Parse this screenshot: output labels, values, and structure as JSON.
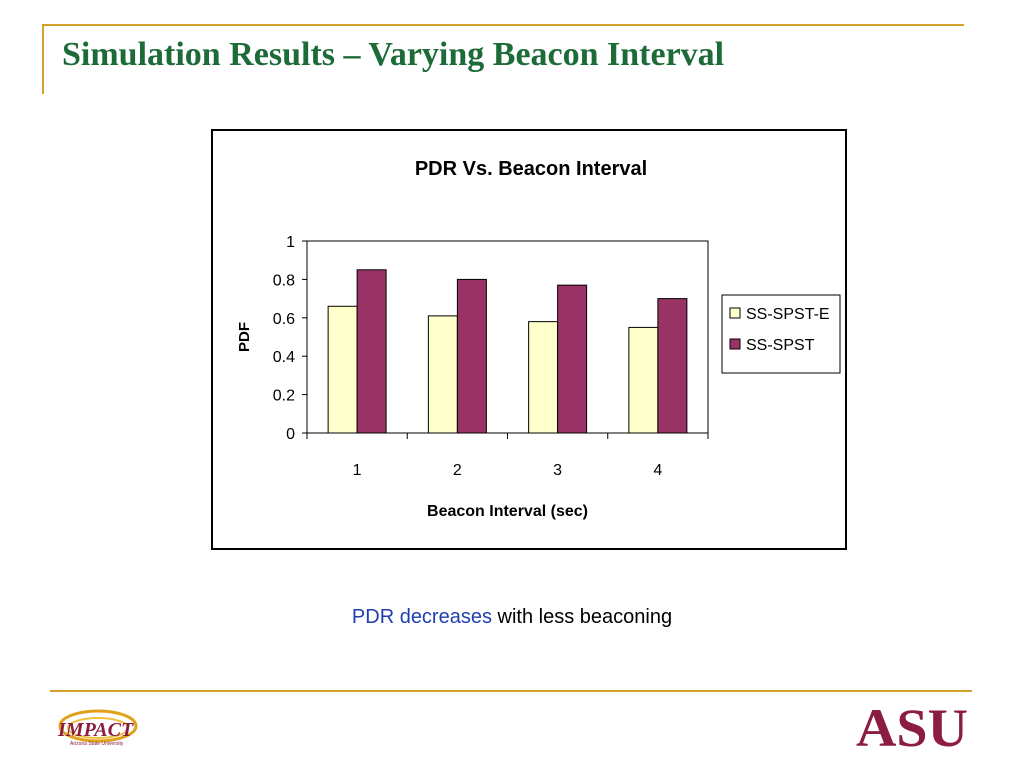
{
  "slide": {
    "title": "Simulation Results – Varying Beacon Interval",
    "caption_highlight": "PDR decreases",
    "caption_rest": " with less beaconing"
  },
  "logos": {
    "impact": "IMPACT",
    "impact_subtitle": "Arizona State University",
    "asu": "ASU"
  },
  "colors": {
    "accent_rule": "#D4A12A",
    "title": "#1E6B3A",
    "caption_highlight": "#1F3FB0",
    "asu_maroon": "#8C1D40"
  },
  "chart_data": {
    "type": "bar",
    "title": "PDR Vs. Beacon Interval",
    "xlabel": "Beacon Interval (sec)",
    "ylabel": "PDF",
    "categories": [
      "1",
      "2",
      "3",
      "4"
    ],
    "ylim": [
      0,
      1
    ],
    "yticks": [
      "0",
      "0.2",
      "0.4",
      "0.6",
      "0.8",
      "1"
    ],
    "grid": false,
    "legend_position": "right",
    "series": [
      {
        "name": "SS-SPST-E",
        "color": "#FFFFCC",
        "values": [
          0.66,
          0.61,
          0.58,
          0.55
        ]
      },
      {
        "name": "SS-SPST",
        "color": "#993366",
        "values": [
          0.85,
          0.8,
          0.77,
          0.7
        ]
      }
    ]
  }
}
